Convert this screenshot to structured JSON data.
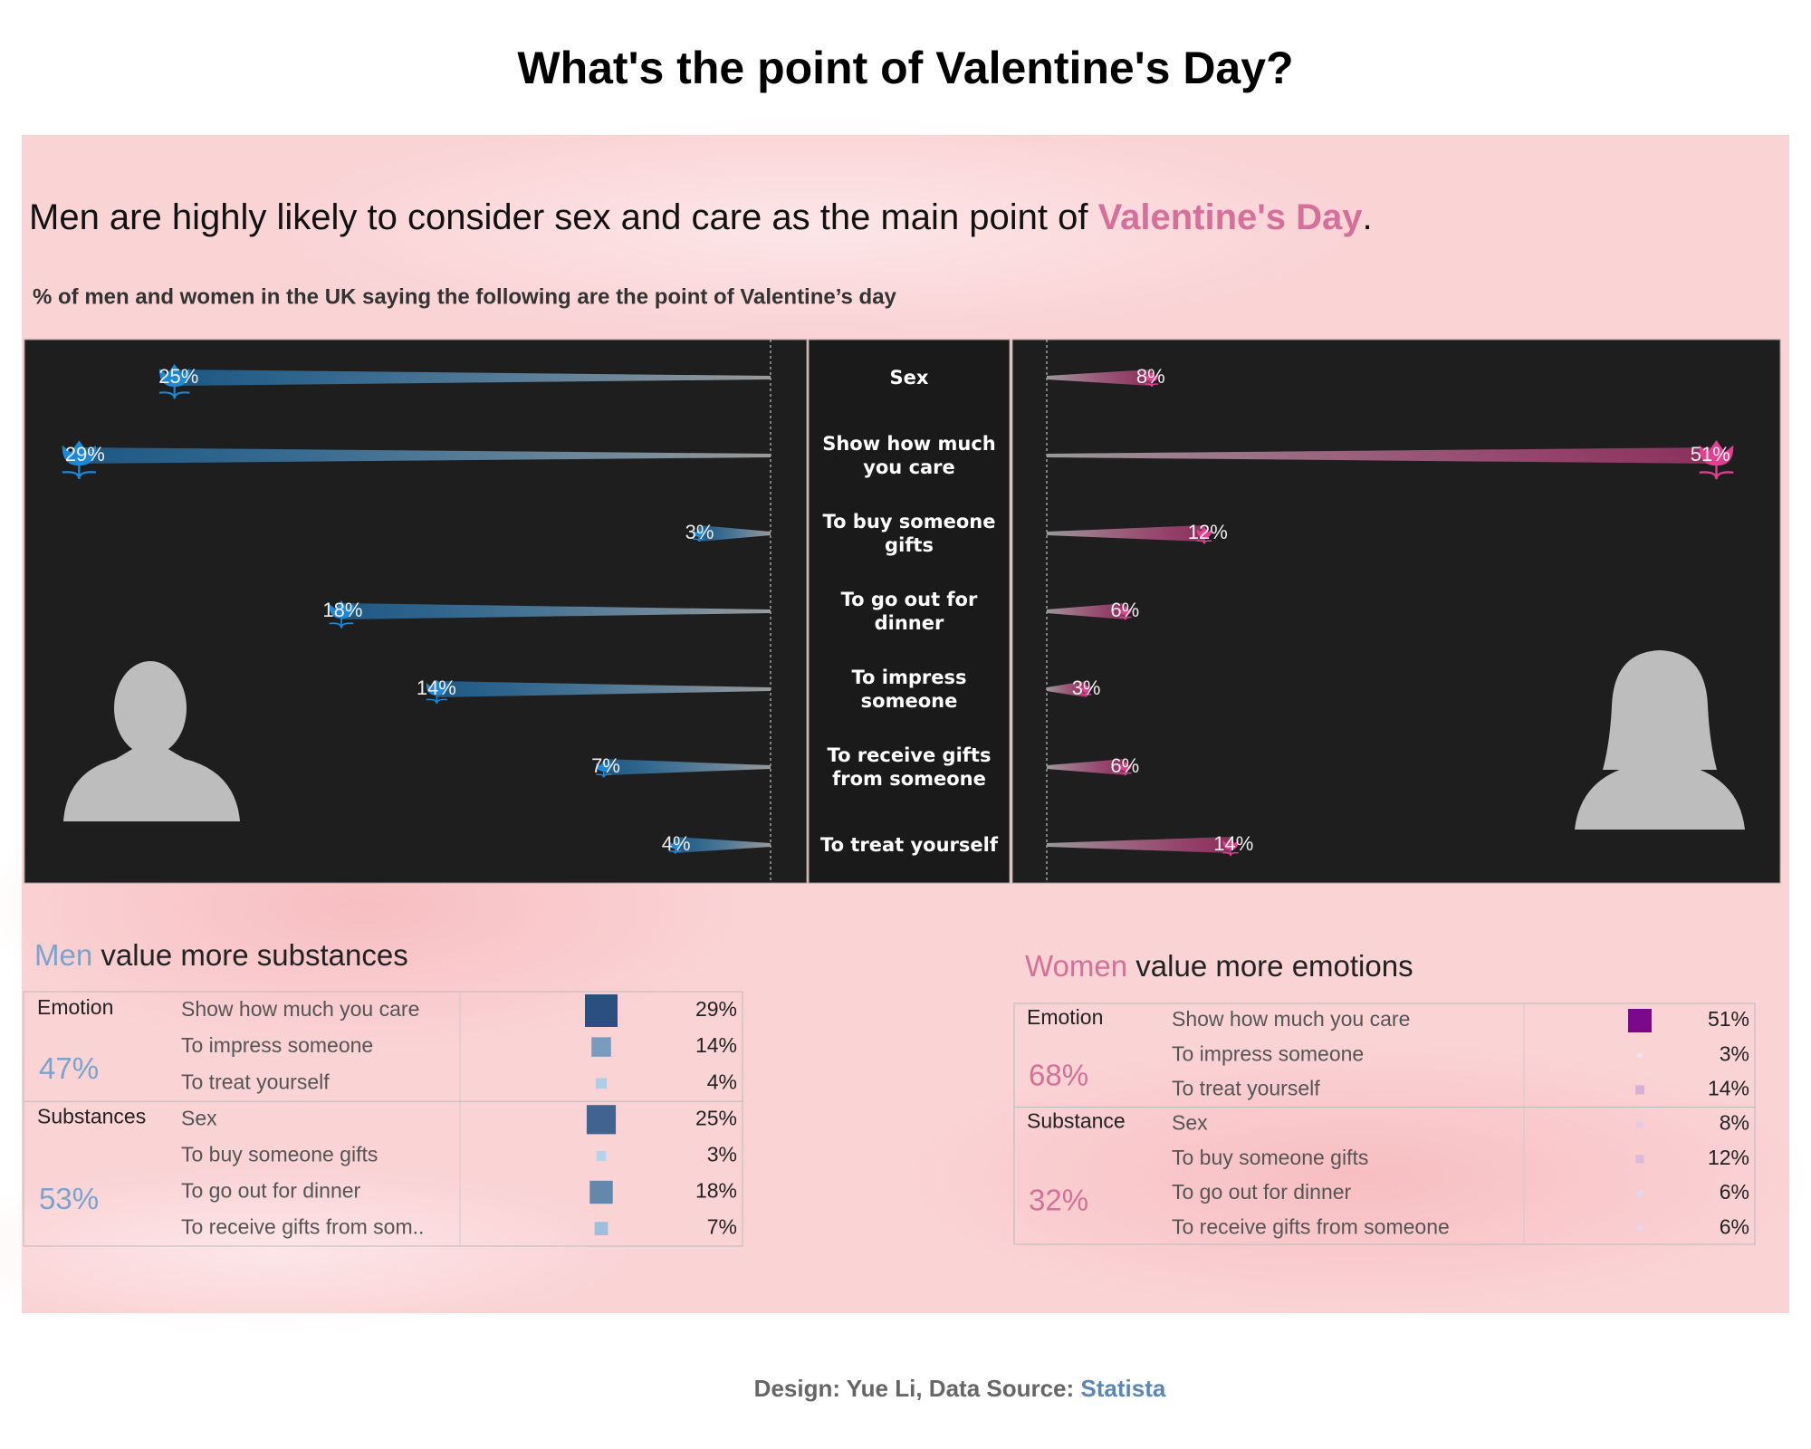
{
  "title": "What's the point of Valentine's Day?",
  "headline": {
    "text": "Men are highly likely to consider sex and care as the main point of ",
    "highlight": "Valentine's Day",
    "end": "."
  },
  "subtitle": "% of men and women in the UK saying the following are the point of Valentine’s day",
  "chart_data": {
    "type": "diverging-bar",
    "categories": [
      "Sex",
      "Show how much you care",
      "To buy someone gifts",
      "To go out for dinner",
      "To impress someone",
      "To receive gifts from someone",
      "To treat yourself"
    ],
    "series": [
      {
        "color": "#1e88d6",
        "values": [
          25,
          29,
          3,
          18,
          14,
          7,
          4
        ],
        "value_labels": [
          "25%",
          "29%",
          "3%",
          "18%",
          "14%",
          "7%",
          "4%"
        ],
        "xlim": [
          0,
          30
        ]
      },
      {
        "color": "#e0408f",
        "values": [
          8,
          51,
          12,
          6,
          3,
          6,
          14
        ],
        "value_labels": [
          "8%",
          "51%",
          "12%",
          "6%",
          "3%",
          "6%",
          "14%"
        ],
        "xlim": [
          0,
          52
        ]
      }
    ]
  },
  "tables": [
    {
      "heading": "Men",
      "heading_rest": " value more substances",
      "colors": [
        "#c2e2f8",
        "#2b4f7e"
      ],
      "groups": [
        {
          "name": "Emotion",
          "share": "47%",
          "rows": [
            {
              "label": "Show how much you care",
              "value": 29,
              "value_label": "29%"
            },
            {
              "label": "To impress someone",
              "value": 14,
              "value_label": "14%"
            },
            {
              "label": "To treat yourself",
              "value": 4,
              "value_label": "4%"
            }
          ]
        },
        {
          "name": "Substances",
          "share": "53%",
          "rows": [
            {
              "label": "Sex",
              "value": 25,
              "value_label": "25%"
            },
            {
              "label": "To buy someone gifts",
              "value": 3,
              "value_label": "3%"
            },
            {
              "label": "To go out for dinner",
              "value": 18,
              "value_label": "18%"
            },
            {
              "label": "To receive gifts from som..",
              "value": 7,
              "value_label": "7%"
            }
          ]
        }
      ]
    },
    {
      "heading": "Women",
      "heading_rest": " value more emotions",
      "colors": [
        "#f6f0f8",
        "#7b0a8a"
      ],
      "groups": [
        {
          "name": "Emotion",
          "share": "68%",
          "rows": [
            {
              "label": "Show how much you care",
              "value": 51,
              "value_label": "51%"
            },
            {
              "label": "To impress someone",
              "value": 3,
              "value_label": "3%"
            },
            {
              "label": "To treat yourself",
              "value": 14,
              "value_label": "14%"
            }
          ]
        },
        {
          "name": "Substance",
          "share": "32%",
          "rows": [
            {
              "label": "Sex",
              "value": 8,
              "value_label": "8%"
            },
            {
              "label": "To buy someone gifts",
              "value": 12,
              "value_label": "12%"
            },
            {
              "label": "To go out for dinner",
              "value": 6,
              "value_label": "6%"
            },
            {
              "label": "To receive gifts from someone",
              "value": 6,
              "value_label": "6%"
            }
          ]
        }
      ]
    }
  ],
  "footer": {
    "text": "Design: Yue Li, Data Source: ",
    "link": "Statista"
  }
}
